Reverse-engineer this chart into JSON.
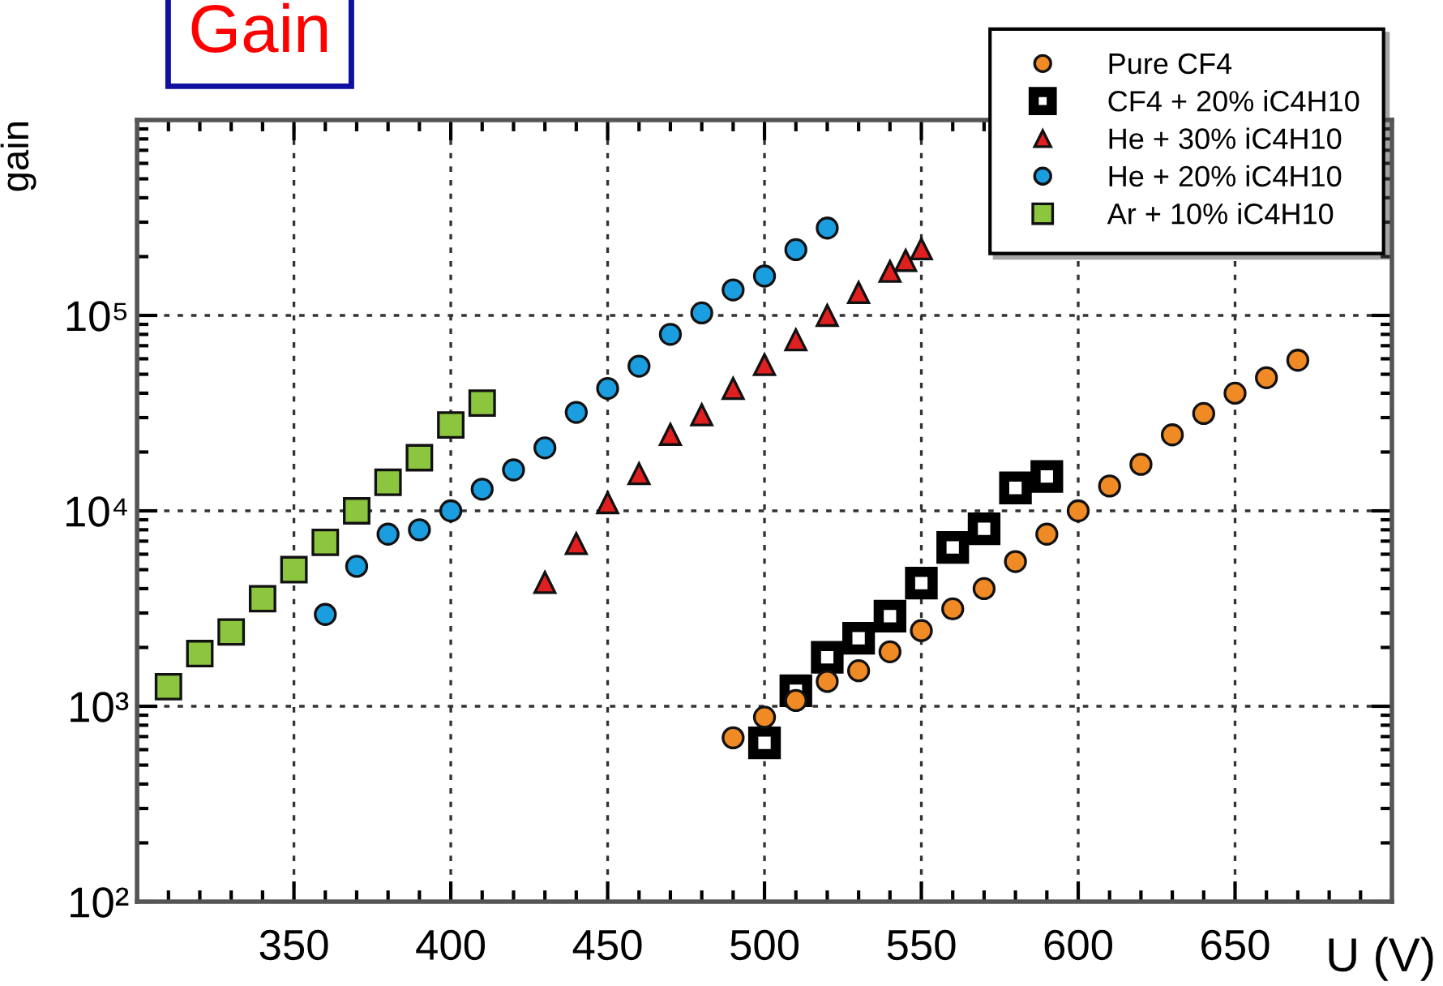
{
  "chart_data": {
    "type": "scatter",
    "title": "Gain",
    "xlabel": "U (V)",
    "ylabel": "gain",
    "log": "y",
    "xlim": [
      300,
      700
    ],
    "xticks": [
      350,
      400,
      450,
      500,
      550,
      600,
      650
    ],
    "ylim": [
      100,
      1000000
    ],
    "yticks": [
      {
        "value": 100,
        "label": "10²"
      },
      {
        "value": 1000,
        "label": "10³"
      },
      {
        "value": 10000,
        "label": "10⁴"
      },
      {
        "value": 100000,
        "label": "10⁵"
      },
      {
        "value": 1000000,
        "label": null
      }
    ],
    "grid": true,
    "legend": "top right",
    "series": [
      {
        "name": "Pure CF4",
        "color": "#f08a24",
        "marker": "circle",
        "x": [
          490,
          500,
          510,
          520,
          530,
          540,
          550,
          560,
          570,
          580,
          590,
          600,
          610,
          620,
          630,
          640,
          650,
          660,
          670
        ],
        "values": [
          690,
          880,
          1070,
          1340,
          1520,
          1900,
          2440,
          3150,
          4000,
          5500,
          7600,
          10000,
          13400,
          17300,
          24500,
          31500,
          40000,
          48000,
          59000
        ]
      },
      {
        "name": "CF4 + 20% iC4H10",
        "color": "#000000",
        "marker": "square",
        "x": [
          500,
          510,
          520,
          530,
          540,
          550,
          560,
          570,
          580,
          590
        ],
        "values": [
          650,
          1200,
          1780,
          2230,
          2890,
          4270,
          6500,
          8100,
          13100,
          15000
        ]
      },
      {
        "name": "He + 30% iC4H10",
        "color": "#e02020",
        "marker": "triangle",
        "x": [
          430,
          440,
          450,
          460,
          470,
          480,
          490,
          500,
          510,
          520,
          530,
          540,
          545,
          550
        ],
        "values": [
          4300,
          6800,
          11000,
          15500,
          24600,
          31000,
          42300,
          56000,
          75000,
          100000,
          131000,
          168000,
          191000,
          219000
        ]
      },
      {
        "name": "He + 20% iC4H10",
        "color": "#1a9ee0",
        "marker": "circle",
        "x": [
          360,
          370,
          380,
          390,
          400,
          410,
          420,
          430,
          440,
          450,
          460,
          470,
          480,
          490,
          500,
          510,
          520
        ],
        "values": [
          2950,
          5200,
          7600,
          8000,
          10000,
          12900,
          16200,
          21000,
          31900,
          42300,
          55000,
          80000,
          103000,
          135000,
          159000,
          217000,
          280000
        ]
      },
      {
        "name": "Ar + 10% iC4H10",
        "color": "#8cc63f",
        "marker": "square",
        "x": [
          310,
          320,
          330,
          340,
          350,
          360,
          370,
          380,
          390,
          400,
          410
        ],
        "values": [
          1260,
          1860,
          2400,
          3550,
          5000,
          6900,
          10000,
          14000,
          18700,
          27500,
          35600
        ]
      }
    ]
  }
}
